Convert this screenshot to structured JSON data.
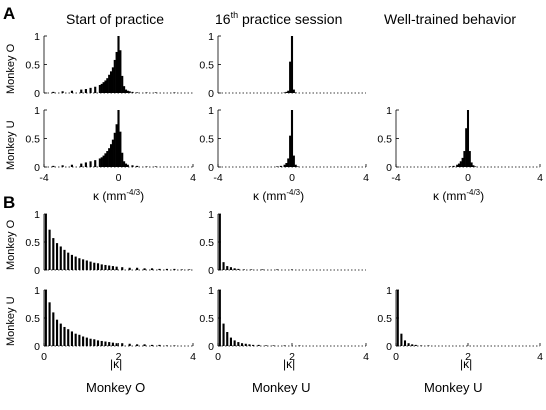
{
  "figure": {
    "panel_letters": [
      "A",
      "B"
    ],
    "column_titles": [
      "Start of practice",
      "16",
      "th",
      " practice session",
      "Well-trained behavior"
    ],
    "row_labels": [
      "Monkey O",
      "Monkey U",
      "Monkey O",
      "Monkey U"
    ],
    "x_labels": [
      "κ (mm",
      "-4/3",
      ")",
      "|κ|"
    ],
    "bottom_labels": [
      "Monkey O",
      "Monkey U",
      "Monkey U"
    ]
  },
  "chart_data": [
    {
      "id": "A-O-1",
      "type": "bar",
      "xlim": [
        -4,
        4
      ],
      "ylim": [
        0,
        1
      ],
      "yticks": [
        0,
        0.5,
        1
      ],
      "xticks": [],
      "xticklabels": [],
      "x": [
        -3.5,
        -3.0,
        -2.5,
        -2.0,
        -1.75,
        -1.5,
        -1.25,
        -1.0,
        -0.9,
        -0.8,
        -0.7,
        -0.6,
        -0.5,
        -0.4,
        -0.3,
        -0.2,
        -0.1,
        0,
        0.1,
        0.2,
        0.3,
        0.4,
        0.5,
        0.6,
        0.75,
        1.0,
        1.5,
        2.0,
        3.0
      ],
      "values": [
        0.02,
        0.03,
        0.04,
        0.06,
        0.07,
        0.09,
        0.11,
        0.14,
        0.16,
        0.19,
        0.22,
        0.26,
        0.32,
        0.38,
        0.45,
        0.58,
        0.72,
        1.0,
        0.75,
        0.3,
        0.12,
        0.06,
        0.04,
        0.03,
        0.02,
        0.01,
        0.01,
        0.005,
        0.005
      ]
    },
    {
      "id": "A-O-2",
      "type": "bar",
      "xlim": [
        -4,
        4
      ],
      "ylim": [
        0,
        1
      ],
      "yticks": [
        0,
        0.5,
        1
      ],
      "xticks": [],
      "xticklabels": [],
      "x": [
        -0.4,
        -0.3,
        -0.2,
        -0.1,
        0,
        0.1,
        0.2
      ],
      "values": [
        0.01,
        0.02,
        0.04,
        0.55,
        1.0,
        0.06,
        0.01
      ]
    },
    {
      "id": "A-U-1",
      "type": "bar",
      "xlim": [
        -4,
        4
      ],
      "ylim": [
        0,
        1
      ],
      "yticks": [
        0,
        0.5,
        1
      ],
      "xticks": [
        -4,
        0,
        4
      ],
      "xticklabels": [
        "-4",
        "0",
        "4"
      ],
      "x": [
        -3.5,
        -3.0,
        -2.5,
        -2.0,
        -1.75,
        -1.5,
        -1.25,
        -1.0,
        -0.9,
        -0.8,
        -0.7,
        -0.6,
        -0.5,
        -0.4,
        -0.3,
        -0.2,
        -0.1,
        0,
        0.1,
        0.2,
        0.3,
        0.4,
        0.5,
        0.75,
        1.0,
        1.5,
        2.0
      ],
      "values": [
        0.02,
        0.03,
        0.04,
        0.06,
        0.08,
        0.1,
        0.12,
        0.15,
        0.17,
        0.2,
        0.24,
        0.28,
        0.33,
        0.4,
        0.48,
        0.6,
        0.75,
        1.0,
        0.62,
        0.25,
        0.1,
        0.06,
        0.04,
        0.03,
        0.02,
        0.01,
        0.01
      ]
    },
    {
      "id": "A-U-2",
      "type": "bar",
      "xlim": [
        -4,
        4
      ],
      "ylim": [
        0,
        1
      ],
      "yticks": [
        0,
        0.5,
        1
      ],
      "xticks": [
        -4,
        0,
        4
      ],
      "xticklabels": [
        "-4",
        "0",
        "4"
      ],
      "x": [
        -0.8,
        -0.6,
        -0.4,
        -0.3,
        -0.2,
        -0.1,
        0,
        0.1,
        0.2,
        0.3
      ],
      "values": [
        0.01,
        0.02,
        0.04,
        0.07,
        0.15,
        0.55,
        1.0,
        0.2,
        0.04,
        0.01
      ]
    },
    {
      "id": "A-U-3",
      "type": "bar",
      "xlim": [
        -4,
        4
      ],
      "ylim": [
        0,
        1
      ],
      "yticks": [
        0,
        0.5,
        1
      ],
      "xticks": [
        -4,
        0,
        4
      ],
      "xticklabels": [
        "-4",
        "0",
        "4"
      ],
      "x": [
        -1.0,
        -0.8,
        -0.6,
        -0.5,
        -0.4,
        -0.3,
        -0.2,
        -0.1,
        0,
        0.1,
        0.2,
        0.3,
        0.4
      ],
      "values": [
        0.01,
        0.02,
        0.04,
        0.06,
        0.1,
        0.16,
        0.28,
        0.68,
        1.0,
        0.28,
        0.08,
        0.03,
        0.01
      ]
    },
    {
      "id": "B-O-1",
      "type": "bar",
      "xlim": [
        0,
        4
      ],
      "ylim": [
        0,
        1
      ],
      "yticks": [
        0,
        0.5,
        1
      ],
      "xticks": [],
      "xticklabels": [],
      "x": [
        0.05,
        0.15,
        0.25,
        0.35,
        0.45,
        0.55,
        0.65,
        0.75,
        0.85,
        0.95,
        1.05,
        1.15,
        1.25,
        1.35,
        1.45,
        1.55,
        1.65,
        1.75,
        1.85,
        1.95,
        2.1,
        2.3,
        2.5,
        2.7,
        2.9,
        3.1,
        3.3,
        3.5,
        3.7,
        3.9
      ],
      "values": [
        1.0,
        0.72,
        0.57,
        0.48,
        0.42,
        0.36,
        0.31,
        0.27,
        0.24,
        0.21,
        0.19,
        0.17,
        0.15,
        0.13,
        0.12,
        0.1,
        0.09,
        0.08,
        0.07,
        0.06,
        0.05,
        0.04,
        0.04,
        0.03,
        0.03,
        0.02,
        0.02,
        0.02,
        0.01,
        0.01
      ]
    },
    {
      "id": "B-O-2",
      "type": "bar",
      "xlim": [
        0,
        4
      ],
      "ylim": [
        0,
        1
      ],
      "yticks": [
        0,
        0.5,
        1
      ],
      "xticks": [],
      "xticklabels": [],
      "x": [
        0.05,
        0.15,
        0.25,
        0.35,
        0.45,
        0.55,
        0.7,
        0.9,
        1.2,
        1.6,
        2.0
      ],
      "values": [
        1.0,
        0.14,
        0.07,
        0.05,
        0.03,
        0.02,
        0.01,
        0.01,
        0.005,
        0.005,
        0.005
      ]
    },
    {
      "id": "B-U-1",
      "type": "bar",
      "xlim": [
        0,
        4
      ],
      "ylim": [
        0,
        1
      ],
      "yticks": [
        0,
        0.5,
        1
      ],
      "xticks": [
        0,
        2,
        4
      ],
      "xticklabels": [
        "0",
        "2",
        "4"
      ],
      "x": [
        0.05,
        0.15,
        0.25,
        0.35,
        0.45,
        0.55,
        0.65,
        0.75,
        0.85,
        0.95,
        1.05,
        1.15,
        1.25,
        1.35,
        1.45,
        1.55,
        1.65,
        1.75,
        1.85,
        1.95,
        2.1,
        2.3,
        2.5,
        2.7,
        2.9,
        3.1,
        3.3,
        3.5
      ],
      "values": [
        1.0,
        0.78,
        0.6,
        0.47,
        0.4,
        0.34,
        0.3,
        0.26,
        0.22,
        0.2,
        0.17,
        0.15,
        0.13,
        0.12,
        0.1,
        0.09,
        0.08,
        0.07,
        0.06,
        0.05,
        0.05,
        0.04,
        0.03,
        0.03,
        0.02,
        0.02,
        0.01,
        0.01
      ]
    },
    {
      "id": "B-U-2",
      "type": "bar",
      "xlim": [
        0,
        4
      ],
      "ylim": [
        0,
        1
      ],
      "yticks": [
        0,
        0.5,
        1
      ],
      "xticks": [
        0,
        2,
        4
      ],
      "xticklabels": [
        "0",
        "2",
        "4"
      ],
      "x": [
        0.05,
        0.15,
        0.25,
        0.35,
        0.45,
        0.55,
        0.65,
        0.75,
        0.85,
        0.95,
        1.1,
        1.3,
        1.5,
        1.8,
        2.2
      ],
      "values": [
        1.0,
        0.4,
        0.25,
        0.15,
        0.1,
        0.07,
        0.05,
        0.04,
        0.03,
        0.02,
        0.02,
        0.01,
        0.01,
        0.01,
        0.005
      ]
    },
    {
      "id": "B-U-3",
      "type": "bar",
      "xlim": [
        0,
        4
      ],
      "ylim": [
        0,
        1
      ],
      "yticks": [
        0,
        0.5,
        1
      ],
      "xticks": [
        0,
        2,
        4
      ],
      "xticklabels": [
        "0",
        "2",
        "4"
      ],
      "x": [
        0.05,
        0.15,
        0.25,
        0.35,
        0.45,
        0.55,
        0.7,
        0.9
      ],
      "values": [
        1.0,
        0.22,
        0.1,
        0.05,
        0.03,
        0.02,
        0.01,
        0.005
      ]
    }
  ]
}
